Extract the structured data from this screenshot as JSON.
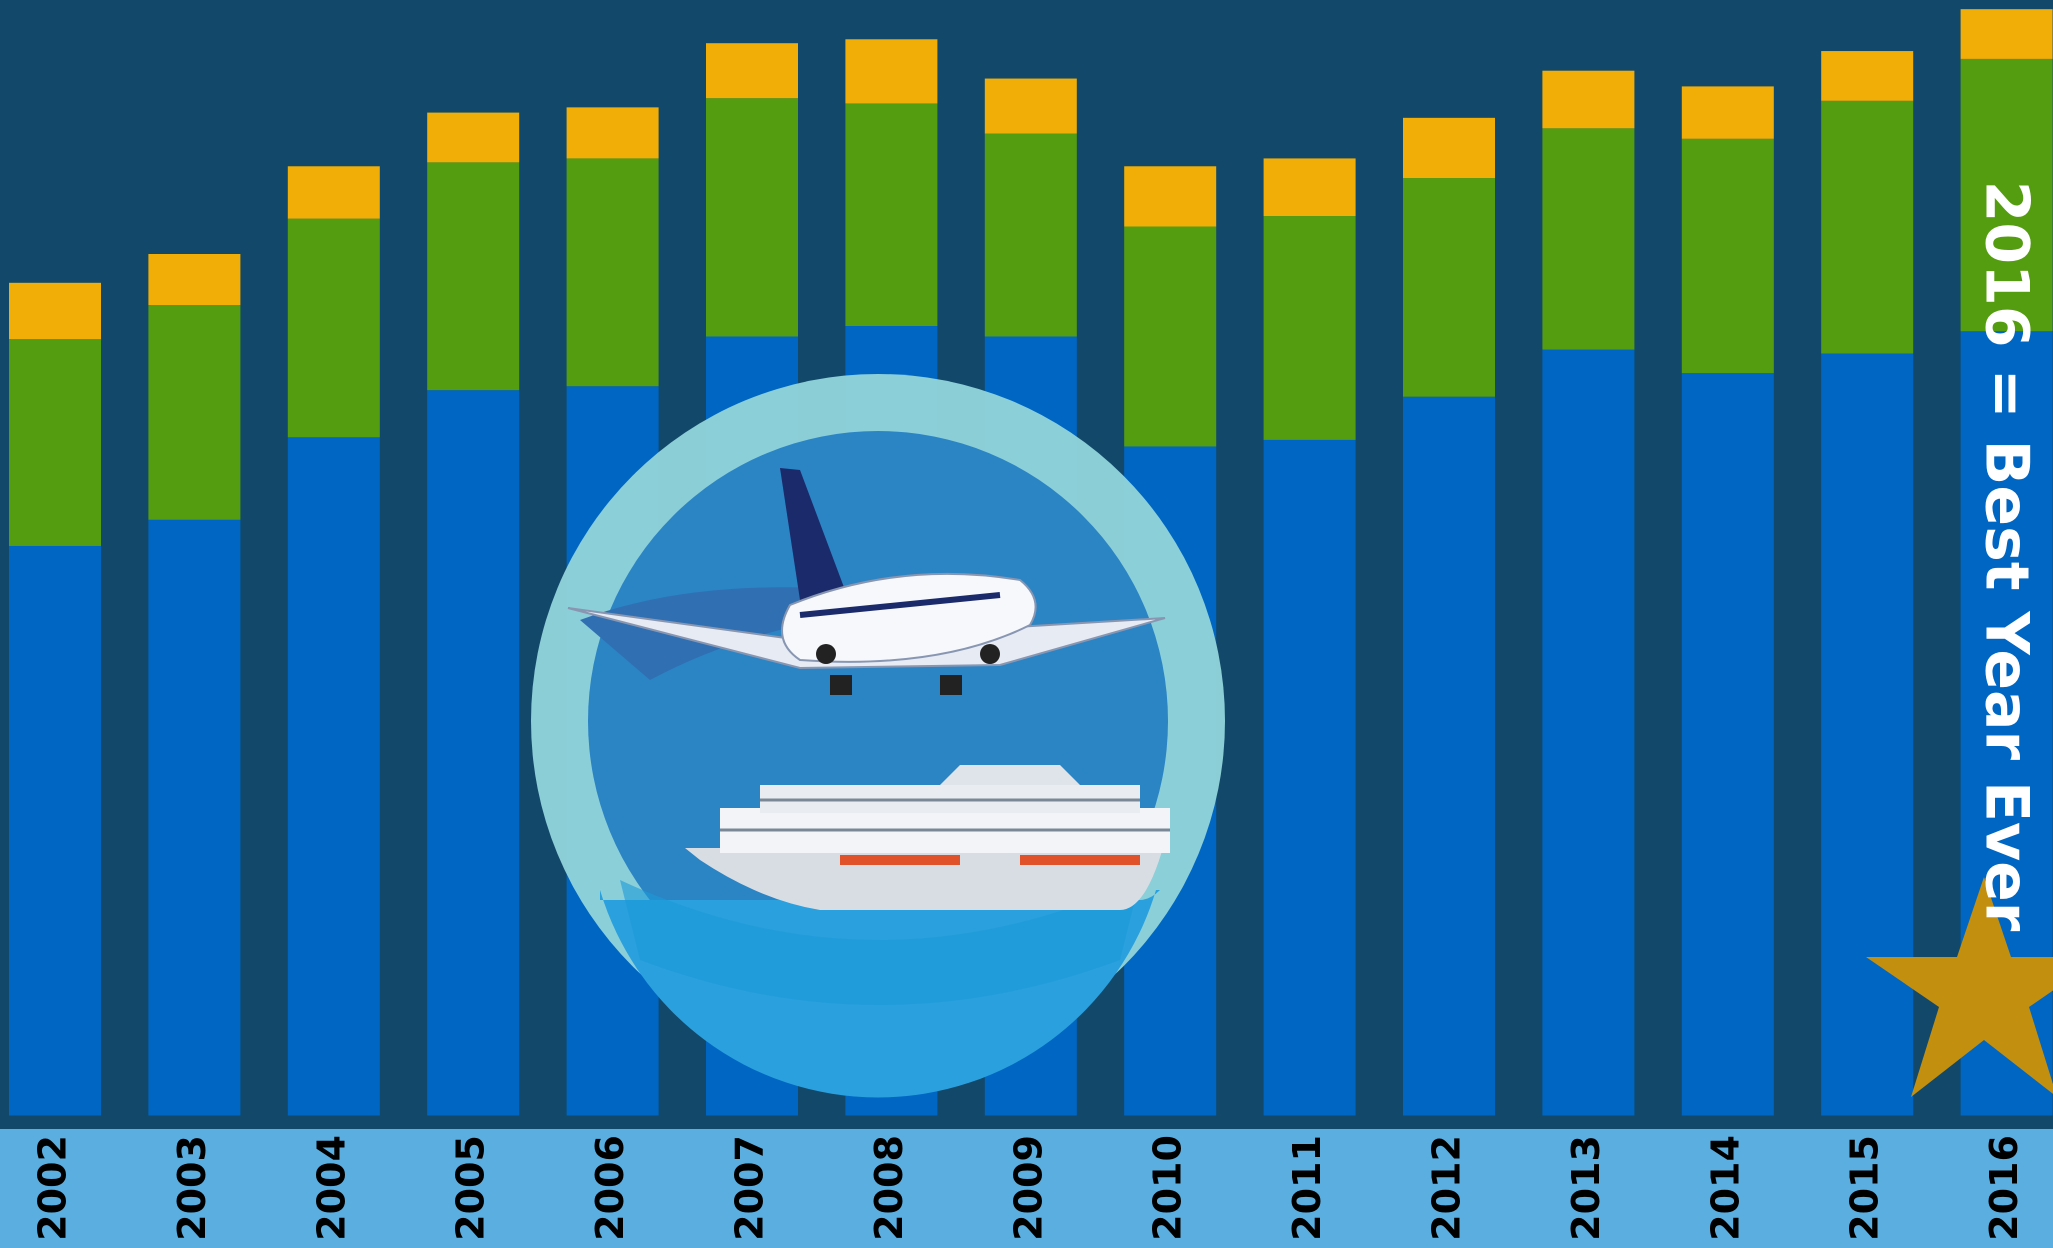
{
  "chart_data": {
    "type": "stacked-bar",
    "categories": [
      "2002",
      "2003",
      "2004",
      "2005",
      "2006",
      "2007",
      "2008",
      "2009",
      "2010",
      "2011",
      "2012",
      "2013",
      "2014",
      "2015",
      "2016"
    ],
    "series": [
      {
        "color": "#0066c4",
        "values": [
          435,
          455,
          518,
          554,
          557,
          595,
          603,
          595,
          511,
          516,
          549,
          585,
          567,
          582,
          599
        ]
      },
      {
        "color": "#559d10",
        "values": [
          158,
          164,
          167,
          174,
          174,
          182,
          170,
          155,
          168,
          171,
          167,
          169,
          179,
          193,
          208
        ]
      },
      {
        "color": "#f1ae07",
        "values": [
          43,
          39,
          40,
          38,
          39,
          42,
          49,
          42,
          46,
          44,
          46,
          44,
          40,
          38,
          38
        ]
      }
    ],
    "ylim": [
      0,
      852
    ],
    "annotation": "2016 = Best Year Ever"
  }
}
